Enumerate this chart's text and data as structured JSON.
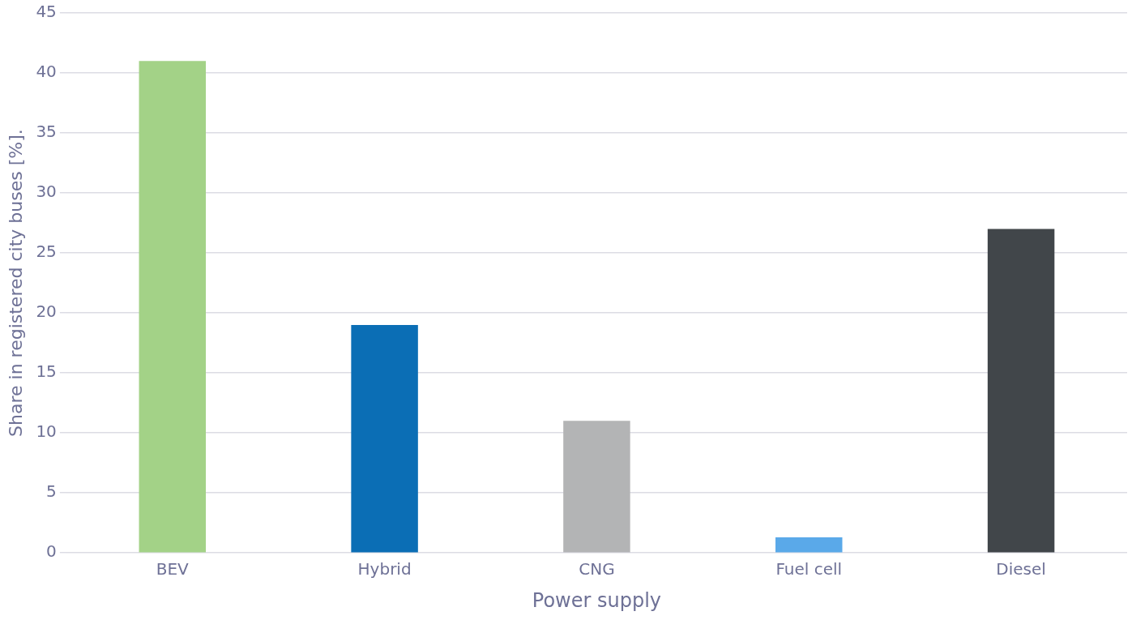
{
  "chart_data": {
    "type": "bar",
    "xlabel": "Power supply",
    "ylabel": "Share in registered city buses [%].",
    "categories": [
      "BEV",
      "Hybrid",
      "CNG",
      "Fuel cell",
      "Diesel"
    ],
    "values": [
      41,
      19,
      11,
      1.3,
      27
    ],
    "colors": [
      "#a3d287",
      "#0b6eb5",
      "#b3b4b5",
      "#5aa9e9",
      "#41464a"
    ],
    "ylim": [
      0,
      45
    ],
    "yticks": [
      0,
      5,
      10,
      15,
      20,
      25,
      30,
      35,
      40,
      45
    ],
    "grid": "y",
    "legend": false
  }
}
